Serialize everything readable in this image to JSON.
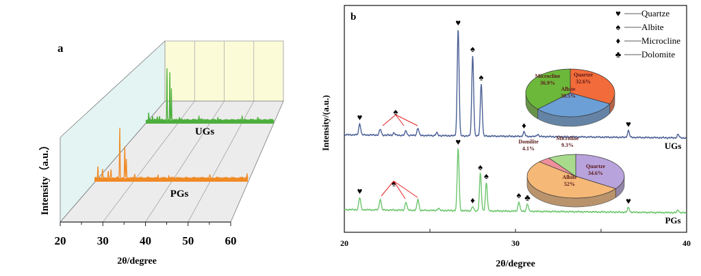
{
  "chart_data": [
    {
      "type": "line",
      "panel_label": "a",
      "title": "",
      "xlabel": "2θ/degree",
      "ylabel": "Intensity（a.u.）",
      "xlim": [
        20,
        60
      ],
      "xticks": [
        "20",
        "30",
        "40",
        "50",
        "60"
      ],
      "style": "3D waterfall",
      "series": [
        {
          "name": "UGs",
          "color": "#4caf3c",
          "peaks": [
            [
              20.9,
              14
            ],
            [
              22.1,
              8
            ],
            [
              23.6,
              7
            ],
            [
              24.3,
              8
            ],
            [
              26.6,
              100
            ],
            [
              27.5,
              92
            ],
            [
              28.0,
              62
            ],
            [
              30.5,
              6
            ],
            [
              36.6,
              8
            ],
            [
              42.5,
              5
            ],
            [
              50.1,
              9
            ],
            [
              55.0,
              5
            ]
          ]
        },
        {
          "name": "PGs",
          "color": "#f08a24",
          "peaks": [
            [
              20.9,
              20
            ],
            [
              22.1,
              15
            ],
            [
              23.6,
              12
            ],
            [
              24.3,
              14
            ],
            [
              26.6,
              83
            ],
            [
              27.9,
              52
            ],
            [
              28.3,
              30
            ],
            [
              30.5,
              6
            ],
            [
              36.6,
              5
            ],
            [
              39.4,
              4
            ],
            [
              50.1,
              6
            ],
            [
              59.8,
              7
            ]
          ]
        }
      ]
    },
    {
      "type": "line",
      "panel_label": "b",
      "title": "",
      "xlabel": "2θ/degree",
      "ylabel": "Intensity/(a.u.)",
      "xlim": [
        20,
        40
      ],
      "ylim": [
        0,
        100
      ],
      "xticks": [
        "20",
        "30",
        "40"
      ],
      "series": [
        {
          "name": "UGs",
          "color": "#4a5f95",
          "baseline": 43,
          "peaks": [
            [
              20.9,
              5
            ],
            [
              22.1,
              2.6
            ],
            [
              22.9,
              1
            ],
            [
              23.6,
              2
            ],
            [
              24.3,
              3.3
            ],
            [
              25.4,
              1.2
            ],
            [
              26.65,
              47
            ],
            [
              27.5,
              35.5
            ],
            [
              28.0,
              23
            ],
            [
              30.5,
              2
            ],
            [
              31.3,
              1
            ],
            [
              36.6,
              3
            ],
            [
              39.5,
              1.5
            ]
          ]
        },
        {
          "name": "PGs",
          "color": "#6cc56c",
          "baseline": 10,
          "peaks": [
            [
              20.9,
              5.4
            ],
            [
              22.1,
              4.8
            ],
            [
              23.6,
              3.6
            ],
            [
              24.3,
              4.8
            ],
            [
              25.5,
              1
            ],
            [
              26.65,
              27.5
            ],
            [
              27.5,
              1.8
            ],
            [
              27.95,
              16.5
            ],
            [
              28.3,
              12.5
            ],
            [
              30.2,
              4.2
            ],
            [
              30.7,
              3.3
            ],
            [
              36.6,
              2.1
            ],
            [
              39.5,
              1.2
            ]
          ]
        }
      ],
      "legend": {
        "position": "top-right",
        "items": [
          {
            "symbol": "♥",
            "label": "Quartze"
          },
          {
            "symbol": "♠",
            "label": "Albite"
          },
          {
            "symbol": "♦",
            "label": "Microcline"
          },
          {
            "symbol": "♣",
            "label": "Dolomite"
          }
        ]
      },
      "markers": [
        {
          "series": "UGs",
          "x": 20.9,
          "symbol": "♥"
        },
        {
          "series": "UGs",
          "x": 23.0,
          "symbol": "♠"
        },
        {
          "series": "UGs",
          "x": 26.65,
          "symbol": "♥"
        },
        {
          "series": "UGs",
          "x": 27.5,
          "symbol": "♠"
        },
        {
          "series": "UGs",
          "x": 28.0,
          "symbol": "♠"
        },
        {
          "series": "UGs",
          "x": 30.5,
          "symbol": "♦"
        },
        {
          "series": "UGs",
          "x": 36.6,
          "symbol": "♥"
        },
        {
          "series": "PGs",
          "x": 20.9,
          "symbol": "♥"
        },
        {
          "series": "PGs",
          "x": 22.9,
          "symbol": "♠"
        },
        {
          "series": "PGs",
          "x": 26.65,
          "symbol": "♥"
        },
        {
          "series": "PGs",
          "x": 27.5,
          "symbol": "♦"
        },
        {
          "series": "PGs",
          "x": 27.95,
          "symbol": "♠"
        },
        {
          "series": "PGs",
          "x": 28.3,
          "symbol": "♠"
        },
        {
          "series": "PGs",
          "x": 30.2,
          "symbol": "♠"
        },
        {
          "series": "PGs",
          "x": 30.7,
          "symbol": "♣"
        },
        {
          "series": "PGs",
          "x": 36.6,
          "symbol": "♥"
        }
      ],
      "pies": [
        {
          "name": "UGs composition",
          "slices": [
            {
              "label": "Quartze",
              "value": 32.6,
              "text": "32.6%",
              "color": "#f26b3a"
            },
            {
              "label": "Albite",
              "value": 30.5,
              "text": "30.5%",
              "color": "#6b9fd6"
            },
            {
              "label": "Microcline",
              "value": 36.9,
              "text": "36.9%",
              "color": "#6cb83a"
            }
          ]
        },
        {
          "name": "PGs composition",
          "slices": [
            {
              "label": "Quartze",
              "value": 34.6,
              "text": "34.6%",
              "color": "#b9a3dc"
            },
            {
              "label": "Albite",
              "value": 52,
              "text": "52%",
              "color": "#f5b877"
            },
            {
              "label": "Domilite",
              "value": 4.1,
              "text": "4.1%",
              "color": "#ef8f9c"
            },
            {
              "label": "Microline",
              "value": 9.3,
              "text": "9.3%",
              "color": "#a8dc8c"
            }
          ]
        }
      ]
    }
  ]
}
